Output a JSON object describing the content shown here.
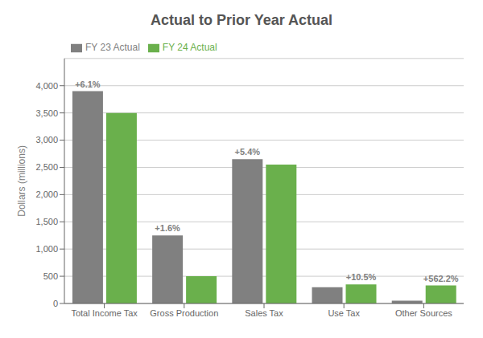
{
  "chart_data": {
    "type": "bar",
    "title": "Actual to Prior Year Actual",
    "y_label": "Dollars (millions)",
    "categories": [
      "Total Income Tax",
      "Gross Production",
      "Sales Tax",
      "Use Tax",
      "Other Sources"
    ],
    "series": [
      {
        "name": "FY 23 Actual",
        "color": "#808080",
        "values": [
          3900,
          1250,
          2650,
          300,
          50
        ]
      },
      {
        "name": "FY 24 Actual",
        "color": "#6ab04c",
        "values": [
          3500,
          500,
          2550,
          350,
          330
        ]
      }
    ],
    "annotations": [
      {
        "text": "+6.1%",
        "category": "Total Income Tax",
        "series": "FY 23 Actual"
      },
      {
        "text": "+1.6%",
        "category": "Gross Production",
        "series": "FY 23 Actual"
      },
      {
        "text": "+5.4%",
        "category": "Sales Tax",
        "series": "FY 23 Actual"
      },
      {
        "text": "+10.5%",
        "category": "Use Tax",
        "series": "FY 24 Actual"
      },
      {
        "text": "+562.2%",
        "category": "Other Sources",
        "series": "FY 24 Actual"
      }
    ],
    "ylim": [
      0,
      4500
    ],
    "yticks": [
      0,
      500,
      {
        "value": 1000,
        "label": "1,000"
      },
      {
        "value": 1500,
        "label": "1,500"
      },
      {
        "value": 2000,
        "label": "2,000"
      },
      {
        "value": 2500,
        "label": "2,500"
      },
      {
        "value": 3000,
        "label": "3,000"
      },
      {
        "value": 3500,
        "label": "3,500"
      },
      {
        "value": 4000,
        "label": "4,000"
      }
    ],
    "grid": true,
    "legend": "upper left"
  }
}
